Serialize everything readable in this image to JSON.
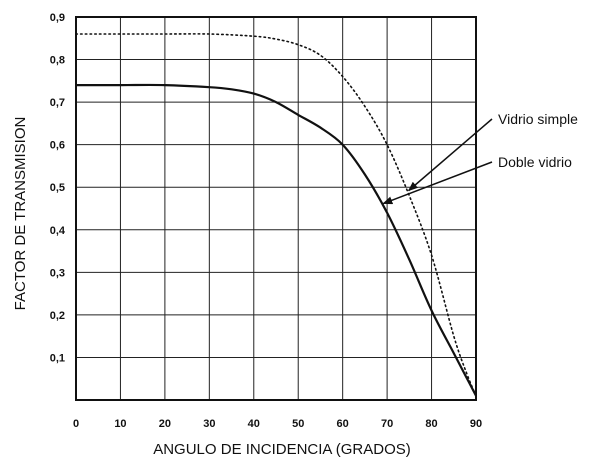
{
  "chart_data": {
    "type": "line",
    "title": "",
    "xlabel": "ANGULO DE INCIDENCIA (GRADOS)",
    "ylabel": "FACTOR DE TRANSMISION",
    "xlim": [
      0,
      90
    ],
    "ylim": [
      0,
      0.9
    ],
    "grid": true,
    "x_ticks": [
      "0",
      "10",
      "20",
      "30",
      "40",
      "50",
      "60",
      "70",
      "80",
      "90"
    ],
    "y_ticks": [
      "0,1",
      "0,2",
      "0,3",
      "0,4",
      "0,5",
      "0,6",
      "0,7",
      "0,8",
      "0,9"
    ],
    "series": [
      {
        "name": "Vidrio simple",
        "style": "dotted",
        "color": "#111111",
        "x": [
          0,
          10,
          20,
          30,
          40,
          45,
          50,
          55,
          60,
          65,
          70,
          75,
          80,
          85,
          88,
          90
        ],
        "y": [
          0.86,
          0.86,
          0.86,
          0.86,
          0.855,
          0.848,
          0.835,
          0.81,
          0.76,
          0.69,
          0.6,
          0.48,
          0.34,
          0.15,
          0.06,
          0.01
        ]
      },
      {
        "name": "Doble vidrio",
        "style": "solid",
        "color": "#111111",
        "x": [
          0,
          10,
          20,
          30,
          35,
          40,
          45,
          50,
          55,
          60,
          65,
          70,
          75,
          80,
          85,
          88,
          90
        ],
        "y": [
          0.74,
          0.74,
          0.74,
          0.735,
          0.73,
          0.72,
          0.7,
          0.67,
          0.64,
          0.6,
          0.53,
          0.44,
          0.33,
          0.21,
          0.11,
          0.05,
          0.01
        ]
      }
    ],
    "annotations": [
      {
        "text": "Vidrio simple",
        "target_series": "Vidrio simple"
      },
      {
        "text": "Doble vidrio",
        "target_series": "Doble vidrio"
      }
    ]
  }
}
